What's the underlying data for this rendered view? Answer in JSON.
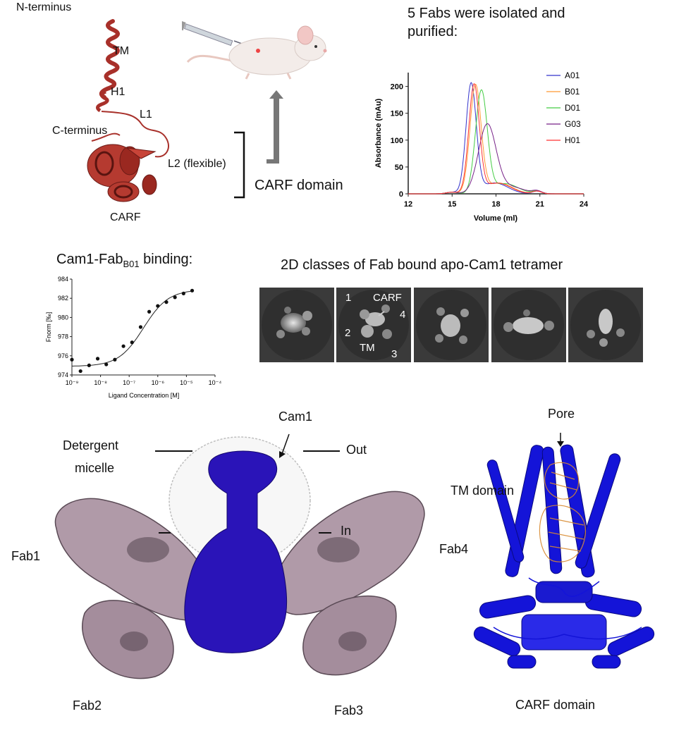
{
  "panel_a": {
    "labels": {
      "n_terminus": "N-terminus",
      "tm": "TM",
      "h1": "H1",
      "l1": "L1",
      "c_terminus": "C-terminus",
      "l2": "L2 (flexible)",
      "carf": "CARF"
    },
    "carf_domain_label": "CARF domain"
  },
  "panel_sec": {
    "title": "5 Fabs were isolated and purified:",
    "title_line1": "5 Fabs were isolated and",
    "title_line2": "purified:"
  },
  "panel_mst": {
    "title_prefix": "Cam1-Fab",
    "title_sub": "B01",
    "title_suffix": " binding:"
  },
  "panel_2d": {
    "title": "2D classes of Fab bound apo-Cam1 tetramer",
    "tile2_labels": {
      "n1": "1",
      "n2": "2",
      "n3": "3",
      "n4": "4",
      "carf": "CARF",
      "tm": "TM"
    }
  },
  "panel_em": {
    "cam1": "Cam1",
    "detergent_line1": "Detergent",
    "detergent_line2": "micelle",
    "out": "Out",
    "in": "In",
    "fab1": "Fab1",
    "fab2": "Fab2",
    "fab3": "Fab3",
    "fab4": "Fab4"
  },
  "panel_model": {
    "pore": "Pore",
    "tm_domain": "TM domain",
    "carf_domain": "CARF domain"
  },
  "colors": {
    "helix_red": "#a8302a",
    "cam1_blue": "#2a14b8",
    "model_blue": "#1414d8",
    "fab_mauve": "#b09aa8",
    "pore_orange": "#d88a30",
    "tile_bg": "#3a3a3a"
  },
  "chart_data": [
    {
      "type": "line",
      "title": "",
      "xlabel": "Volume (ml)",
      "ylabel": "Absorbance (mAu)",
      "xlim": [
        12,
        24
      ],
      "ylim": [
        0,
        210
      ],
      "xticks": [
        "12",
        "15",
        "18",
        "21",
        "24"
      ],
      "yticks": [
        "0",
        "50",
        "100",
        "150",
        "200"
      ],
      "legend_position": "top-right",
      "series": [
        {
          "name": "A01",
          "color": "#3333cc",
          "peak_x": 16.3,
          "peak_y": 203,
          "width": 0.35
        },
        {
          "name": "B01",
          "color": "#ff9933",
          "peak_x": 16.6,
          "peak_y": 200,
          "width": 0.38
        },
        {
          "name": "D01",
          "color": "#44cc44",
          "peak_x": 17.0,
          "peak_y": 190,
          "width": 0.4
        },
        {
          "name": "G03",
          "color": "#772288",
          "peak_x": 17.4,
          "peak_y": 128,
          "width": 0.6
        },
        {
          "name": "H01",
          "color": "#ff3333",
          "peak_x": 16.5,
          "peak_y": 201,
          "width": 0.36
        }
      ]
    },
    {
      "type": "scatter",
      "title": "Cam1-FabB01 binding:",
      "xlabel": "Ligand Concentration [M]",
      "ylabel": "Fnorm [‰]",
      "xscale": "log",
      "xlim_exp": [
        -9,
        -4
      ],
      "ylim": [
        974,
        984
      ],
      "xticks": [
        "10⁻⁹",
        "10⁻⁸",
        "10⁻⁷",
        "10⁻⁶",
        "10⁻⁵",
        "10⁻⁴"
      ],
      "yticks": [
        "974",
        "976",
        "978",
        "980",
        "982",
        "984"
      ],
      "points_log_x": [
        -9.0,
        -8.7,
        -8.4,
        -8.1,
        -7.8,
        -7.5,
        -7.2,
        -6.9,
        -6.6,
        -6.3,
        -6.0,
        -5.7,
        -5.4,
        -5.1,
        -4.8
      ],
      "points_y": [
        975.6,
        974.4,
        975.0,
        975.7,
        975.1,
        975.6,
        977.0,
        977.4,
        979.0,
        980.6,
        981.2,
        981.6,
        982.1,
        982.5,
        982.8
      ],
      "fit": {
        "bottom": 974.9,
        "top": 982.9,
        "log_kd": -6.5,
        "slope": 1.0
      }
    }
  ]
}
